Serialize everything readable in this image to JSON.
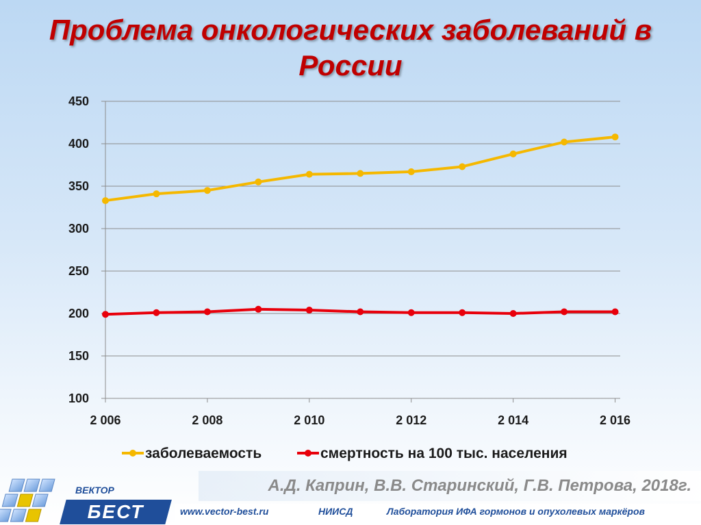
{
  "title": "Проблема онкологических заболеваний в России",
  "chart_data": {
    "type": "line",
    "x": [
      2006,
      2007,
      2008,
      2009,
      2010,
      2011,
      2012,
      2013,
      2014,
      2015,
      2016
    ],
    "x_tick_labels": [
      "2 006",
      "2 008",
      "2 010",
      "2 012",
      "2 014",
      "2 016"
    ],
    "x_tick_values": [
      2006,
      2008,
      2010,
      2012,
      2014,
      2016
    ],
    "y_tick_labels": [
      "100",
      "150",
      "200",
      "250",
      "300",
      "350",
      "400",
      "450"
    ],
    "ylim": [
      100,
      450
    ],
    "grid": true,
    "legend_position": "bottom",
    "series": [
      {
        "name": "заболеваемость",
        "color": "#f5b800",
        "values": [
          333,
          341,
          345,
          355,
          364,
          365,
          367,
          373,
          388,
          402,
          408
        ]
      },
      {
        "name": "смертность на 100 тыс. населения",
        "color": "#e8000b",
        "values": [
          199,
          201,
          202,
          205,
          204,
          202,
          201,
          201,
          200,
          202,
          202
        ]
      }
    ]
  },
  "footer": {
    "citation": "А.Д. Каприн, В.В. Старинский, Г.В. Петрова, 2018г.",
    "website": "www.vector-best.ru",
    "org": "НИИСД",
    "lab": "Лаборатория ИФА гормонов и опухолевых маркёров",
    "logo_small": "ВЕКТОР",
    "logo_big": "БЕСТ"
  }
}
